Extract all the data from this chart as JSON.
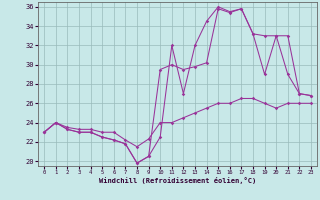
{
  "xlabel": "Windchill (Refroidissement éolien,°C)",
  "xlim": [
    -0.5,
    23.5
  ],
  "ylim": [
    19.5,
    36.5
  ],
  "xticks": [
    0,
    1,
    2,
    3,
    4,
    5,
    6,
    7,
    8,
    9,
    10,
    11,
    12,
    13,
    14,
    15,
    16,
    17,
    18,
    19,
    20,
    21,
    22,
    23
  ],
  "yticks": [
    20,
    22,
    24,
    26,
    28,
    30,
    32,
    34,
    36
  ],
  "bg_color": "#c8e8e8",
  "grid_color": "#99bbbb",
  "line_color": "#993399",
  "line1_x": [
    0,
    1,
    2,
    3,
    4,
    5,
    6,
    7,
    8,
    9,
    10,
    11,
    12,
    13,
    14,
    15,
    16,
    17,
    18,
    19,
    20,
    21,
    22,
    23
  ],
  "line1_y": [
    23,
    24,
    23.5,
    23.3,
    23.3,
    23,
    23,
    22.2,
    21.5,
    22.3,
    24,
    24,
    24.5,
    25,
    25.5,
    26,
    26,
    26.5,
    26.5,
    26,
    25.5,
    26,
    26,
    26
  ],
  "line2_x": [
    0,
    1,
    2,
    3,
    4,
    5,
    6,
    7,
    8,
    9,
    10,
    11,
    12,
    13,
    14,
    15,
    16,
    17,
    18,
    19,
    20,
    21,
    22,
    23
  ],
  "line2_y": [
    23,
    24,
    23.3,
    23,
    23,
    22.5,
    22.2,
    21.8,
    19.8,
    20.5,
    22.5,
    32,
    27,
    32,
    34.5,
    36,
    35.5,
    35.8,
    33.2,
    33,
    33,
    33,
    27,
    26.8
  ],
  "line3_x": [
    0,
    1,
    2,
    3,
    4,
    5,
    6,
    7,
    8,
    9,
    10,
    11,
    12,
    13,
    14,
    15,
    16,
    17,
    18,
    19,
    20,
    21,
    22,
    23
  ],
  "line3_y": [
    23,
    24,
    23.3,
    23,
    23,
    22.5,
    22.2,
    21.8,
    19.8,
    20.5,
    29.5,
    30,
    29.5,
    29.8,
    30.2,
    35.8,
    35.4,
    35.8,
    33.2,
    29,
    33,
    29,
    27,
    26.8
  ]
}
